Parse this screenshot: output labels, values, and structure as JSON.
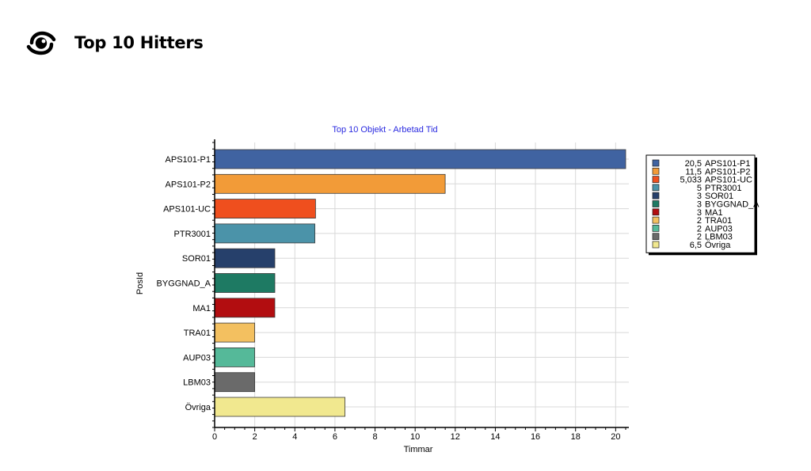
{
  "header": {
    "icon": "target-eye-icon",
    "title": "Top 10 Hitters"
  },
  "chart_data": {
    "type": "bar",
    "orientation": "horizontal",
    "title": "Top 10 Objekt - Arbetad Tid",
    "xlabel": "Timmar",
    "ylabel": "PosId",
    "xlim": [
      0,
      20.5
    ],
    "xticks": [
      0,
      2,
      4,
      6,
      8,
      10,
      12,
      14,
      16,
      18,
      20
    ],
    "grid": true,
    "legend_position": "right",
    "categories": [
      "APS101-P1",
      "APS101-P2",
      "APS101-UC",
      "PTR3001",
      "SOR01",
      "BYGGNAD_A",
      "MA1",
      "TRA01",
      "AUP03",
      "LBM03",
      "Övriga"
    ],
    "values": [
      20.5,
      11.5,
      5.033,
      5,
      3,
      3,
      3,
      2,
      2,
      2,
      6.5
    ],
    "colors": [
      "#4063a1",
      "#f29b38",
      "#ef4f1e",
      "#4b93a9",
      "#26406b",
      "#1e7a63",
      "#b20d10",
      "#f3c060",
      "#55b999",
      "#6a6a6a",
      "#f1e88f"
    ],
    "legend": [
      {
        "value": "20,5",
        "label": "APS101-P1"
      },
      {
        "value": "11,5",
        "label": "APS101-P2"
      },
      {
        "value": "5,033",
        "label": "APS101-UC"
      },
      {
        "value": "5",
        "label": "PTR3001"
      },
      {
        "value": "3",
        "label": "SOR01"
      },
      {
        "value": "3",
        "label": "BYGGNAD_A"
      },
      {
        "value": "3",
        "label": "MA1"
      },
      {
        "value": "2",
        "label": "TRA01"
      },
      {
        "value": "2",
        "label": "AUP03"
      },
      {
        "value": "2",
        "label": "LBM03"
      },
      {
        "value": "6,5",
        "label": "Övriga"
      }
    ]
  }
}
